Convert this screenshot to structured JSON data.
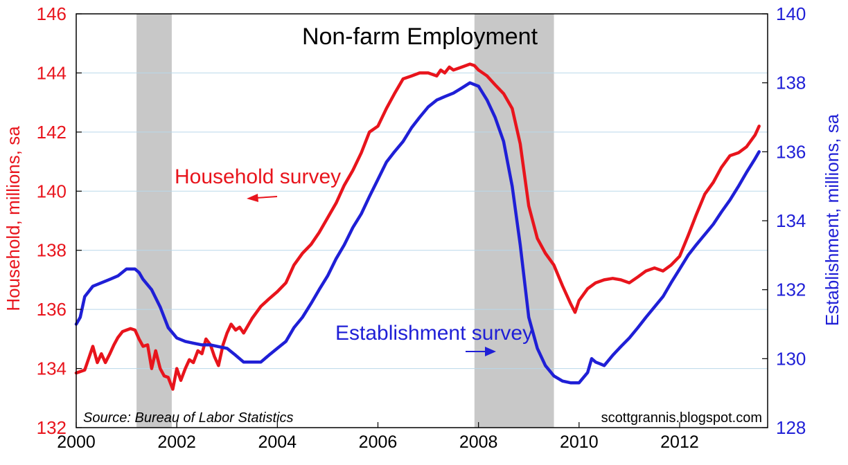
{
  "chart_data": {
    "type": "line",
    "title": "Non-farm Employment",
    "source": "Source:  Bureau of Labor Statistics",
    "credit": "scottgrannis.blogspot.com",
    "x_ticks": [
      "2000",
      "2002",
      "2004",
      "2006",
      "2008",
      "2010",
      "2012"
    ],
    "xlim": [
      2000.0,
      2013.75
    ],
    "left_axis": {
      "label": "Household, millions, sa",
      "ylim": [
        132,
        146
      ],
      "ticks": [
        "132",
        "134",
        "136",
        "138",
        "140",
        "142",
        "144",
        "146"
      ],
      "color": "#e8141c"
    },
    "right_axis": {
      "label": "Establishment, millions, sa",
      "ylim": [
        128,
        140
      ],
      "ticks": [
        "128",
        "130",
        "132",
        "134",
        "136",
        "138",
        "140"
      ],
      "color": "#1f1fd6"
    },
    "recessions": [
      {
        "start": 2001.2,
        "end": 2001.9
      },
      {
        "start": 2007.92,
        "end": 2009.5
      }
    ],
    "annotations": {
      "household": "Household survey",
      "establishment": "Establishment survey"
    },
    "series": [
      {
        "name": "Household survey",
        "axis": "left",
        "color": "#e8141c",
        "x": [
          2000.0,
          2000.17,
          2000.33,
          2000.42,
          2000.5,
          2000.58,
          2000.67,
          2000.75,
          2000.83,
          2000.92,
          2001.0,
          2001.08,
          2001.17,
          2001.25,
          2001.33,
          2001.42,
          2001.5,
          2001.58,
          2001.67,
          2001.75,
          2001.83,
          2001.92,
          2002.0,
          2002.08,
          2002.17,
          2002.25,
          2002.33,
          2002.42,
          2002.5,
          2002.58,
          2002.67,
          2002.75,
          2002.83,
          2002.92,
          2003.0,
          2003.08,
          2003.17,
          2003.25,
          2003.33,
          2003.5,
          2003.67,
          2003.83,
          2004.0,
          2004.17,
          2004.33,
          2004.5,
          2004.67,
          2004.83,
          2005.0,
          2005.17,
          2005.33,
          2005.5,
          2005.67,
          2005.83,
          2006.0,
          2006.17,
          2006.33,
          2006.5,
          2006.67,
          2006.83,
          2007.0,
          2007.17,
          2007.25,
          2007.33,
          2007.42,
          2007.5,
          2007.67,
          2007.83,
          2007.92,
          2008.0,
          2008.17,
          2008.33,
          2008.5,
          2008.67,
          2008.83,
          2009.0,
          2009.17,
          2009.33,
          2009.5,
          2009.67,
          2009.83,
          2009.92,
          2010.0,
          2010.17,
          2010.33,
          2010.5,
          2010.67,
          2010.83,
          2011.0,
          2011.17,
          2011.33,
          2011.5,
          2011.67,
          2011.83,
          2012.0,
          2012.17,
          2012.33,
          2012.5,
          2012.67,
          2012.83,
          2013.0,
          2013.17,
          2013.33,
          2013.5,
          2013.58
        ],
        "y": [
          133.85,
          133.95,
          134.75,
          134.2,
          134.5,
          134.2,
          134.5,
          134.8,
          135.05,
          135.25,
          135.3,
          135.35,
          135.3,
          135.0,
          134.75,
          134.8,
          134.0,
          134.6,
          134.0,
          133.75,
          133.7,
          133.3,
          134.0,
          133.6,
          134.0,
          134.3,
          134.2,
          134.6,
          134.5,
          135.0,
          134.8,
          134.4,
          134.1,
          134.8,
          135.2,
          135.5,
          135.3,
          135.4,
          135.2,
          135.7,
          136.1,
          136.35,
          136.6,
          136.9,
          137.5,
          137.9,
          138.2,
          138.6,
          139.1,
          139.6,
          140.2,
          140.7,
          141.3,
          142.0,
          142.2,
          142.8,
          143.3,
          143.8,
          143.9,
          144.0,
          144.0,
          143.9,
          144.1,
          144.0,
          144.2,
          144.1,
          144.2,
          144.3,
          144.25,
          144.1,
          143.9,
          143.6,
          143.3,
          142.8,
          141.6,
          139.5,
          138.4,
          137.9,
          137.5,
          136.8,
          136.2,
          135.9,
          136.3,
          136.7,
          136.9,
          137.0,
          137.05,
          137.0,
          136.9,
          137.1,
          137.3,
          137.4,
          137.3,
          137.5,
          137.8,
          138.5,
          139.2,
          139.9,
          140.3,
          140.8,
          141.2,
          141.3,
          141.5,
          141.9,
          142.2
        ]
      },
      {
        "name": "Establishment survey",
        "axis": "right",
        "color": "#1f1fd6",
        "x": [
          2000.0,
          2000.08,
          2000.17,
          2000.33,
          2000.5,
          2000.67,
          2000.83,
          2001.0,
          2001.17,
          2001.25,
          2001.33,
          2001.5,
          2001.67,
          2001.83,
          2002.0,
          2002.17,
          2002.33,
          2002.5,
          2002.67,
          2002.83,
          2003.0,
          2003.17,
          2003.33,
          2003.5,
          2003.67,
          2003.83,
          2004.0,
          2004.17,
          2004.33,
          2004.5,
          2004.67,
          2004.83,
          2005.0,
          2005.17,
          2005.33,
          2005.5,
          2005.67,
          2005.83,
          2006.0,
          2006.17,
          2006.33,
          2006.5,
          2006.67,
          2006.83,
          2007.0,
          2007.17,
          2007.33,
          2007.5,
          2007.67,
          2007.83,
          2008.0,
          2008.17,
          2008.33,
          2008.5,
          2008.67,
          2008.83,
          2009.0,
          2009.17,
          2009.33,
          2009.5,
          2009.67,
          2009.83,
          2010.0,
          2010.17,
          2010.25,
          2010.33,
          2010.42,
          2010.5,
          2010.67,
          2010.83,
          2011.0,
          2011.17,
          2011.33,
          2011.5,
          2011.67,
          2011.83,
          2012.0,
          2012.17,
          2012.33,
          2012.5,
          2012.67,
          2012.83,
          2013.0,
          2013.17,
          2013.33,
          2013.5,
          2013.58
        ],
        "y": [
          131.0,
          131.2,
          131.8,
          132.1,
          132.2,
          132.3,
          132.4,
          132.6,
          132.6,
          132.5,
          132.3,
          132.0,
          131.5,
          130.9,
          130.6,
          130.5,
          130.45,
          130.4,
          130.4,
          130.35,
          130.3,
          130.1,
          129.9,
          129.9,
          129.9,
          130.1,
          130.3,
          130.5,
          130.9,
          131.2,
          131.6,
          132.0,
          132.4,
          132.9,
          133.3,
          133.8,
          134.2,
          134.7,
          135.2,
          135.7,
          136.0,
          136.3,
          136.7,
          137.0,
          137.3,
          137.5,
          137.6,
          137.7,
          137.85,
          138.0,
          137.9,
          137.5,
          137.0,
          136.3,
          135.0,
          133.3,
          131.2,
          130.3,
          129.8,
          129.5,
          129.35,
          129.3,
          129.3,
          129.6,
          130.0,
          129.9,
          129.85,
          129.8,
          130.1,
          130.35,
          130.6,
          130.9,
          131.2,
          131.5,
          131.8,
          132.2,
          132.6,
          133.0,
          133.3,
          133.6,
          133.9,
          134.25,
          134.6,
          135.0,
          135.4,
          135.8,
          136.0
        ]
      }
    ]
  }
}
